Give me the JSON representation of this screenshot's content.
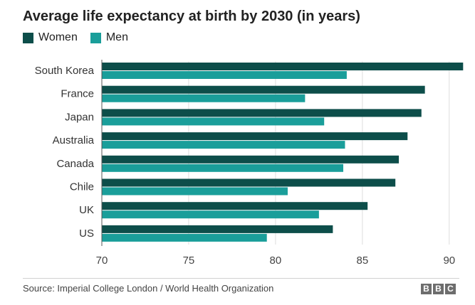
{
  "title": "Average life expectancy at birth by 2030 (in years)",
  "legend": [
    {
      "label": "Women",
      "color": "#0d4e4a"
    },
    {
      "label": "Men",
      "color": "#1a9e9a"
    }
  ],
  "source": "Source: Imperial College London / World Health Organization",
  "logo": [
    "B",
    "B",
    "C"
  ],
  "chart_data": {
    "type": "bar",
    "orientation": "horizontal",
    "title": "Average life expectancy at birth by 2030 (in years)",
    "categories": [
      "South Korea",
      "France",
      "Japan",
      "Australia",
      "Canada",
      "Chile",
      "UK",
      "US"
    ],
    "series": [
      {
        "name": "Women",
        "color": "#0d4e4a",
        "values": [
          90.8,
          88.6,
          88.4,
          87.6,
          87.1,
          86.9,
          85.3,
          83.3
        ]
      },
      {
        "name": "Men",
        "color": "#1a9e9a",
        "values": [
          84.1,
          81.7,
          82.8,
          84.0,
          83.9,
          80.7,
          82.5,
          79.5
        ]
      }
    ],
    "xlim": [
      70,
      90.5
    ],
    "xticks": [
      70,
      75,
      80,
      85,
      90
    ],
    "xlabel": "",
    "ylabel": "",
    "grid": true,
    "legend_position": "top-left"
  }
}
